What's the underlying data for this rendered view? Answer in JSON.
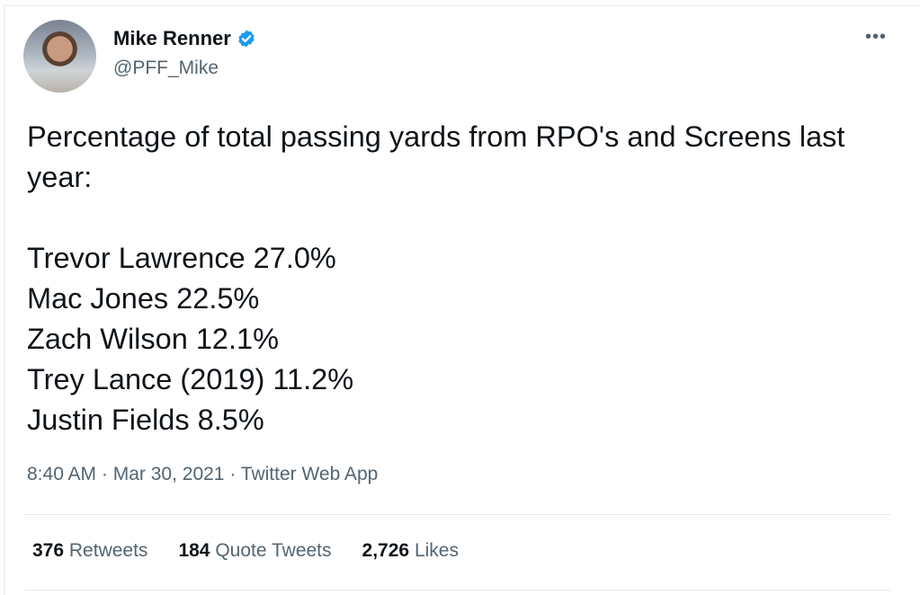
{
  "tweet": {
    "author": {
      "name": "Mike Renner",
      "handle": "@PFF_Mike",
      "verified": true,
      "verified_color": "#1d9bf0"
    },
    "text": "Percentage of total passing yards from RPO's and Screens last year:\n\nTrevor Lawrence 27.0%\nMac Jones 22.5%\nZach Wilson 12.1%\nTrey Lance (2019) 11.2%\nJustin Fields 8.5%",
    "time": "8:40 AM",
    "date": "Mar 30, 2021",
    "source": "Twitter Web App",
    "stats": [
      {
        "count": "376",
        "label": "Retweets"
      },
      {
        "count": "184",
        "label": "Quote Tweets"
      },
      {
        "count": "2,726",
        "label": "Likes"
      }
    ],
    "more_icon": "more-horizontal-icon"
  },
  "sep": " · "
}
